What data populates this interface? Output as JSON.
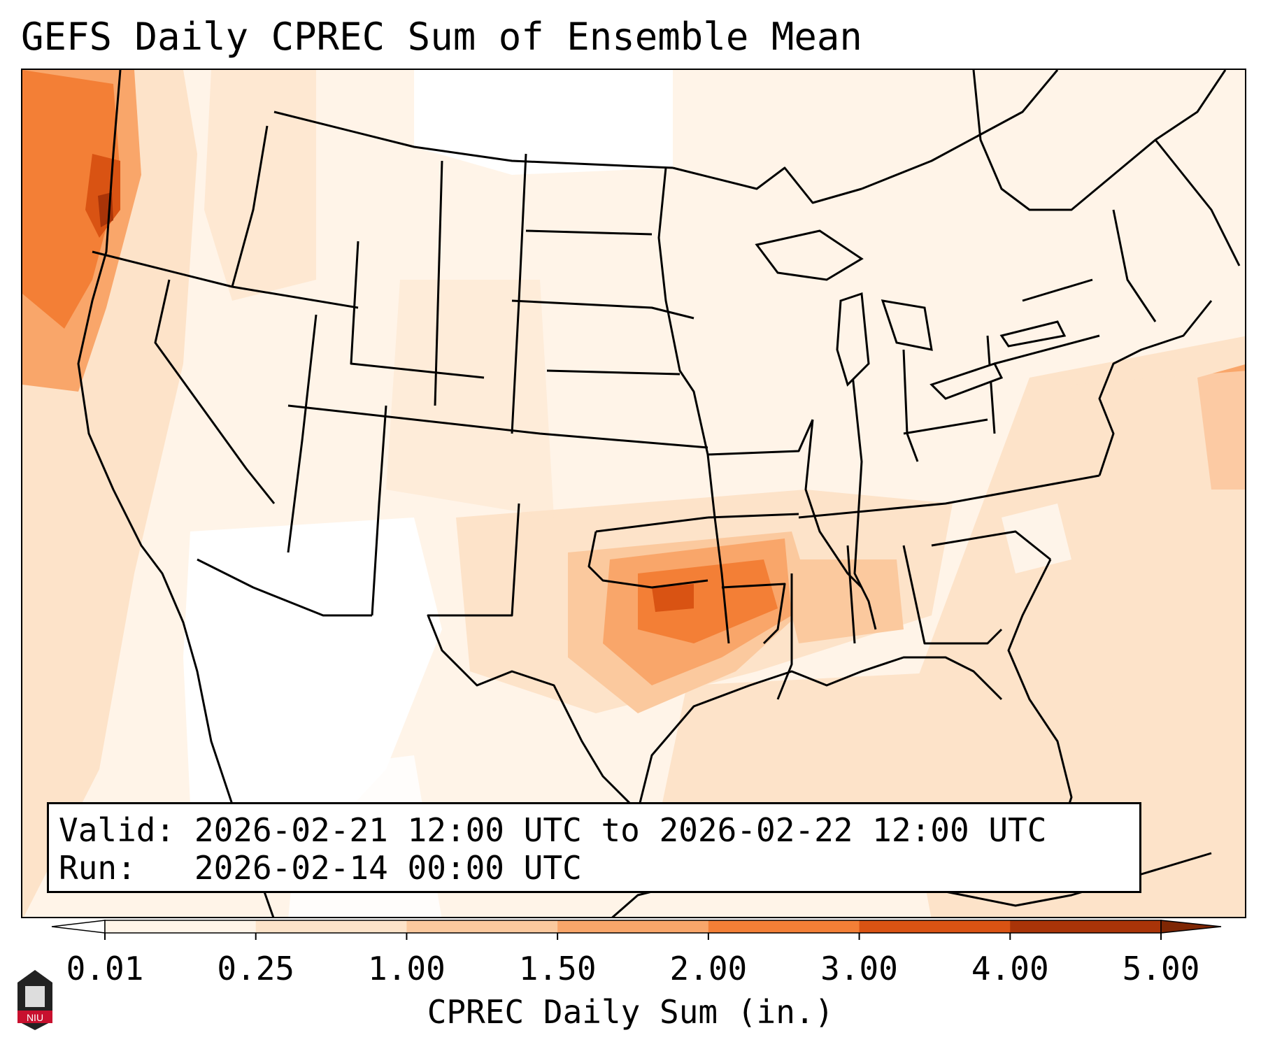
{
  "title": "GEFS Daily CPREC Sum of Ensemble Mean",
  "info": {
    "valid_label": "Valid:",
    "valid_value": "2026-02-21 12:00 UTC to 2026-02-22 12:00 UTC",
    "run_label": "Run:",
    "run_value": "2026-02-14 00:00 UTC"
  },
  "colorbar": {
    "label": "CPREC Daily Sum (in.)",
    "ticks": [
      "0.01",
      "0.25",
      "1.00",
      "1.50",
      "2.00",
      "3.00",
      "4.00",
      "5.00"
    ],
    "colors": [
      "#fff4e8",
      "#fde3c9",
      "#fbc99e",
      "#f9a66a",
      "#f37f36",
      "#d95313",
      "#a93408"
    ],
    "under_color": "#ffffff",
    "over_color": "#7f2704"
  },
  "map": {
    "projection": "lambert-conformal",
    "region": "CONUS",
    "features": [
      "state-boundaries",
      "coastlines",
      "great-lakes"
    ],
    "heavy_precip_areas": [
      "Pacific Northwest coast",
      "Oklahoma / Arkansas / Mississippi",
      "western Atlantic"
    ]
  },
  "logo": {
    "text": "NIU"
  }
}
